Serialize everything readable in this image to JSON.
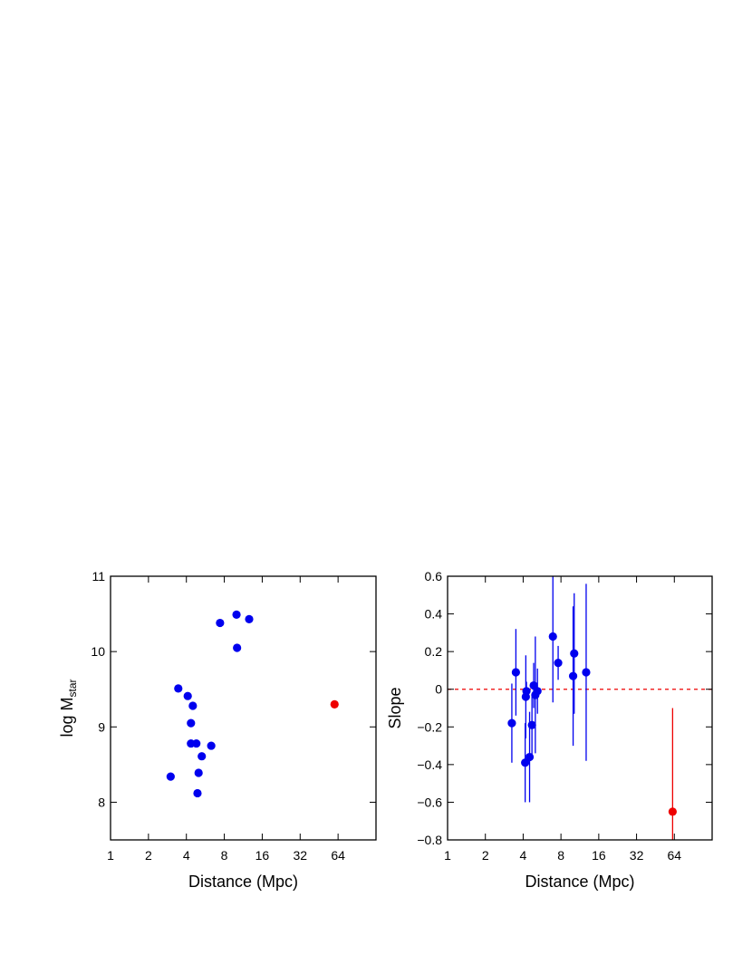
{
  "chart_data": [
    {
      "type": "scatter",
      "xlabel": "Distance (Mpc)",
      "ylabel": "log M",
      "ylabel_sub": "star",
      "x_scale": "log2",
      "xlim": [
        1,
        128
      ],
      "ylim": [
        7.5,
        11
      ],
      "xticks": [
        1,
        2,
        4,
        8,
        16,
        32,
        64
      ],
      "xtick_labels": [
        "1",
        "2",
        "4",
        "8",
        "16",
        "32",
        "64"
      ],
      "yticks": [
        8,
        9,
        10,
        11
      ],
      "ytick_labels": [
        "8",
        "9",
        "10",
        "11"
      ],
      "series": [
        {
          "color": "#0000ee",
          "x": [
            3.0,
            3.45,
            4.1,
            4.5,
            4.35,
            4.8,
            5.0,
            5.3,
            6.3,
            7.4,
            10.0,
            10.1,
            12.6,
            4.35,
            4.9
          ],
          "y": [
            8.34,
            9.51,
            9.41,
            9.28,
            9.05,
            8.78,
            8.39,
            8.61,
            8.75,
            10.38,
            10.49,
            10.05,
            10.43,
            8.78,
            8.12
          ]
        },
        {
          "color": "#ee0000",
          "x": [
            60.0
          ],
          "y": [
            9.3
          ]
        }
      ]
    },
    {
      "type": "scatter",
      "xlabel": "Distance (Mpc)",
      "ylabel": "Slope",
      "x_scale": "log2",
      "xlim": [
        1,
        128
      ],
      "ylim": [
        -0.8,
        0.6
      ],
      "xticks": [
        1,
        2,
        4,
        8,
        16,
        32,
        64
      ],
      "xtick_labels": [
        "1",
        "2",
        "4",
        "8",
        "16",
        "32",
        "64"
      ],
      "yticks": [
        -0.8,
        -0.6,
        -0.4,
        -0.2,
        0,
        0.2,
        0.4,
        0.6
      ],
      "ytick_labels": [
        "−0.8",
        "−0.6",
        "−0.4",
        "−0.2",
        "0",
        "0.2",
        "0.4",
        "0.6"
      ],
      "reference_line": {
        "y": 0,
        "style": "dashed",
        "color": "#ee0000"
      },
      "series": [
        {
          "color": "#0000ee",
          "x": [
            3.25,
            3.5,
            4.15,
            4.2,
            4.5,
            4.7,
            4.85,
            5.0,
            5.2,
            6.9,
            7.6,
            10.0,
            10.2,
            12.7,
            4.25
          ],
          "y": [
            -0.18,
            0.09,
            -0.39,
            -0.04,
            -0.36,
            -0.19,
            0.02,
            -0.03,
            -0.01,
            0.28,
            0.14,
            0.07,
            0.19,
            0.09,
            -0.01
          ],
          "yerr": [
            0.21,
            0.23,
            0.21,
            0.22,
            0.24,
            0.16,
            0.12,
            0.31,
            0.12,
            0.35,
            0.09,
            0.37,
            0.32,
            0.47,
            0.05
          ]
        },
        {
          "color": "#ee0000",
          "x": [
            62.0
          ],
          "y": [
            -0.65
          ],
          "yerr": [
            0.55
          ]
        }
      ]
    }
  ]
}
